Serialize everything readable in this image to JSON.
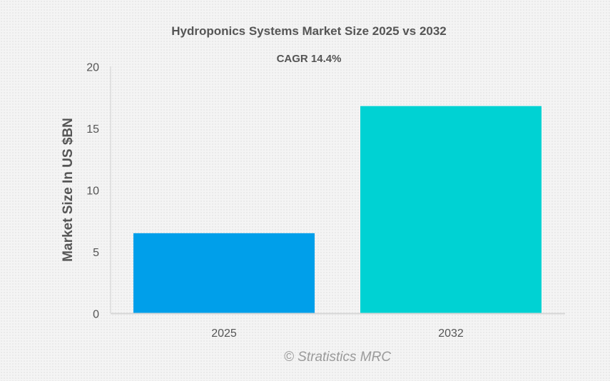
{
  "chart_data": {
    "type": "bar",
    "title": "Hydroponics Systems Market Size 2025 vs 2032",
    "subtitle": "CAGR 14.4%",
    "categories": [
      "2025",
      "2032"
    ],
    "values": [
      6.5,
      16.8
    ],
    "colors": [
      "#009fea",
      "#00d2d3"
    ],
    "xlabel": "",
    "ylabel": "Market Size In US $BN",
    "ylim": [
      0,
      20
    ],
    "yticks": [
      0,
      5,
      10,
      15,
      20
    ],
    "grid": false,
    "watermark": "© Stratistics MRC"
  }
}
